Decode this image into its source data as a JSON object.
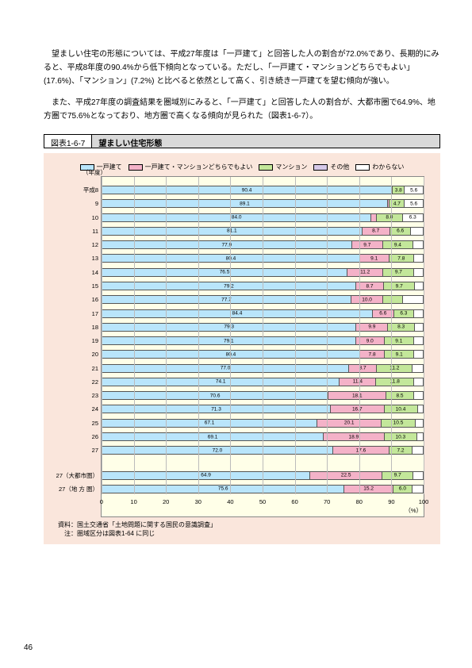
{
  "paragraphs": {
    "p1": "望ましい住宅の形態については、平成27年度は「一戸建て」と回答した人の割合が72.0%であり、長期的にみると、平成8年度の90.4%から低下傾向となっている。ただし、「一戸建て・マンションどちらでもよい」(17.6%)、「マンション」(7.2%) と比べると依然として高く、引き続き一戸建てを望む傾向が強い。",
    "p2": "また、平成27年度の調査結果を圏域別にみると、「一戸建て」と回答した人の割合が、大都市圏で64.9%、地方圏で75.6%となっており、地方圏で高くなる傾向が見られた（図表1-6-7）。"
  },
  "figure": {
    "label": "図表1-6-7",
    "name": "望ましい住宅形態"
  },
  "legend": [
    {
      "label": "一戸建て",
      "color": "#b9e5fb"
    },
    {
      "label": "一戸建て・マンションどちらでもよい",
      "color": "#f4b2c8"
    },
    {
      "label": "マンション",
      "color": "#c3e79a"
    },
    {
      "label": "その他",
      "color": "#d6c9e9"
    },
    {
      "label": "わからない",
      "color": "#ffffff"
    }
  ],
  "chart": {
    "axis_title": "（年度）",
    "x_unit": "（%）",
    "xlim": [
      0,
      100
    ],
    "xticks": [
      0,
      10,
      20,
      30,
      40,
      50,
      60,
      70,
      80,
      90,
      100
    ],
    "bg_color": "#ffffe8",
    "wrap_bg": "#fae6dc",
    "rows": [
      {
        "label": "平成8",
        "values": [
          90.4
        ],
        "labels": [
          "90.4",
          "",
          "3.8",
          "5.6"
        ],
        "group": 0
      },
      {
        "label": "9",
        "values": [
          89.1
        ],
        "labels": [
          "89.1",
          "",
          "4.7",
          "5.6"
        ],
        "group": 0
      },
      {
        "label": "10",
        "values": [
          84.0
        ],
        "labels": [
          "84.0",
          "",
          "8.0",
          "6.3"
        ],
        "group": 0
      },
      {
        "label": "11",
        "values": [
          81.1
        ],
        "labels": [
          "81.1",
          "8.7",
          "6.6",
          ""
        ],
        "group": 0
      },
      {
        "label": "12",
        "values": [
          77.9
        ],
        "labels": [
          "77.9",
          "9.7",
          "9.4",
          ""
        ],
        "group": 0
      },
      {
        "label": "13",
        "values": [
          80.4
        ],
        "labels": [
          "80.4",
          "9.1",
          "7.8",
          ""
        ],
        "group": 0
      },
      {
        "label": "14",
        "values": [
          76.5
        ],
        "labels": [
          "76.5",
          "11.2",
          "9.7",
          ""
        ],
        "group": 0
      },
      {
        "label": "15",
        "values": [
          79.2
        ],
        "labels": [
          "79.2",
          "8.7",
          "9.7",
          ""
        ],
        "group": 0
      },
      {
        "label": "16",
        "values": [
          77.7
        ],
        "labels": [
          "77.7",
          "10.0",
          "",
          ""
        ],
        "group": 0
      },
      {
        "label": "17",
        "values": [
          84.4
        ],
        "labels": [
          "84.4",
          "6.6",
          "6.3",
          ""
        ],
        "group": 0
      },
      {
        "label": "18",
        "values": [
          79.3
        ],
        "labels": [
          "79.3",
          "9.9",
          "8.3",
          ""
        ],
        "group": 0
      },
      {
        "label": "19",
        "values": [
          79.1
        ],
        "labels": [
          "79.1",
          "9.0",
          "9.1",
          ""
        ],
        "group": 0
      },
      {
        "label": "20",
        "values": [
          80.4
        ],
        "labels": [
          "80.4",
          "7.8",
          "9.1",
          ""
        ],
        "group": 0
      },
      {
        "label": "21",
        "values": [
          77.0
        ],
        "labels": [
          "77.0",
          "8.7",
          "11.2",
          ""
        ],
        "group": 0
      },
      {
        "label": "22",
        "values": [
          74.1
        ],
        "labels": [
          "74.1",
          "11.4",
          "11.8",
          ""
        ],
        "group": 0
      },
      {
        "label": "23",
        "values": [
          70.6
        ],
        "labels": [
          "70.6",
          "18.1",
          "8.5",
          ""
        ],
        "group": 0
      },
      {
        "label": "24",
        "values": [
          71.3
        ],
        "labels": [
          "71.3",
          "16.7",
          "10.4",
          ""
        ],
        "group": 0
      },
      {
        "label": "25",
        "values": [
          67.1
        ],
        "labels": [
          "67.1",
          "20.1",
          "10.5",
          ""
        ],
        "group": 0
      },
      {
        "label": "26",
        "values": [
          69.1
        ],
        "labels": [
          "69.1",
          "18.9",
          "10.3",
          ""
        ],
        "group": 0
      },
      {
        "label": "27",
        "values": [
          72.0
        ],
        "labels": [
          "72.0",
          "17.6",
          "7.2",
          ""
        ],
        "group": 0
      },
      {
        "label": "27（大都市圏）",
        "values": [
          64.9
        ],
        "labels": [
          "64.9",
          "22.5",
          "9.7",
          ""
        ],
        "group": 1
      },
      {
        "label": "27（地 方 圏）",
        "values": [
          75.6
        ],
        "labels": [
          "75.6",
          "15.2",
          "6.0",
          ""
        ],
        "group": 1
      }
    ]
  },
  "source": {
    "line1": "資料：国土交通省「土地問題に関する国民の意識調査」",
    "line2": "　注：圏域区分は図表1-64 に同じ"
  },
  "page_number": "46"
}
